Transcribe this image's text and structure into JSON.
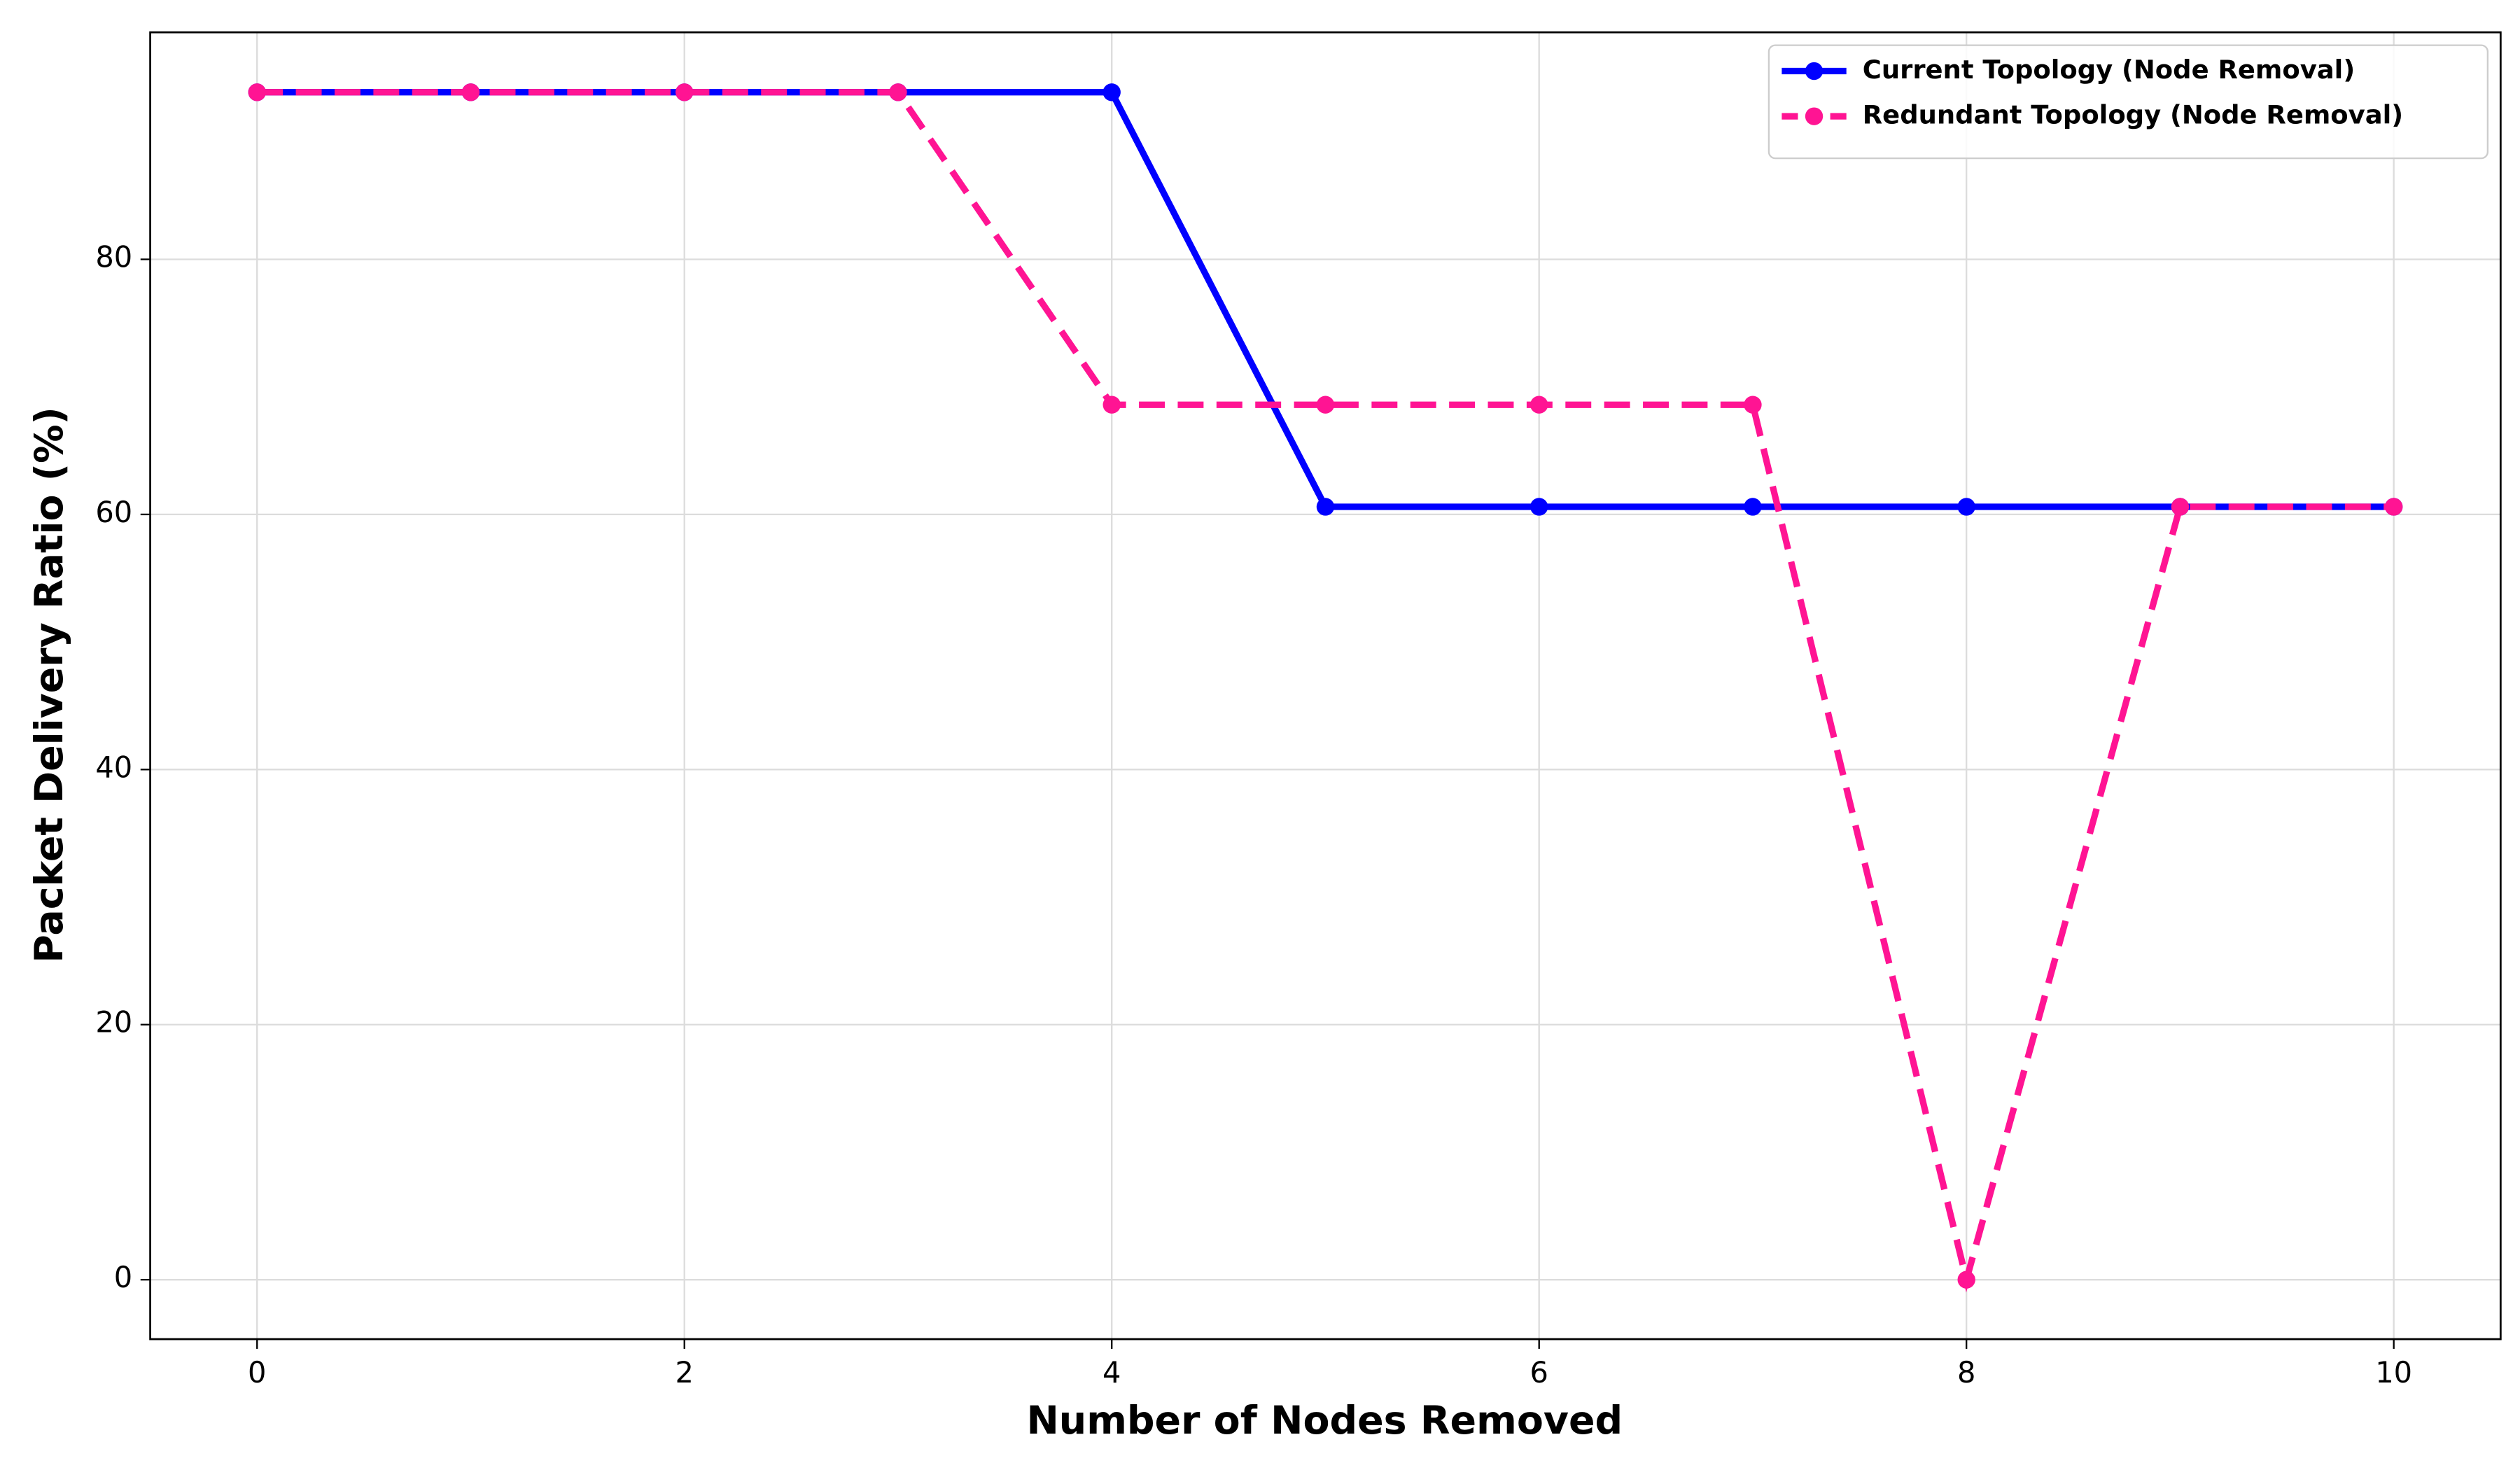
{
  "chart_data": {
    "type": "line",
    "xlabel": "Number of Nodes Removed",
    "ylabel": "Packet Delivery Ratio (%)",
    "x": [
      0,
      1,
      2,
      3,
      4,
      5,
      6,
      7,
      8,
      9,
      10
    ],
    "series": [
      {
        "name": "Current Topology (Node Removal)",
        "color": "#0000ff",
        "dash": "solid",
        "values": [
          93.1,
          93.1,
          93.1,
          93.1,
          93.1,
          60.6,
          60.6,
          60.6,
          60.6,
          60.6,
          60.6
        ]
      },
      {
        "name": "Redundant Topology (Node Removal)",
        "color": "#ff1493",
        "dash": "dashed",
        "values": [
          93.1,
          93.1,
          93.1,
          93.1,
          68.6,
          68.6,
          68.6,
          68.6,
          0,
          60.6,
          60.6
        ]
      }
    ],
    "xlim": [
      -0.5,
      10.5
    ],
    "xticks": [
      0,
      2,
      4,
      6,
      8,
      10
    ],
    "ylim": [
      -4.66,
      97.8
    ],
    "yticks": [
      0,
      20,
      40,
      60,
      80
    ],
    "grid": true,
    "legend": "upper right"
  }
}
